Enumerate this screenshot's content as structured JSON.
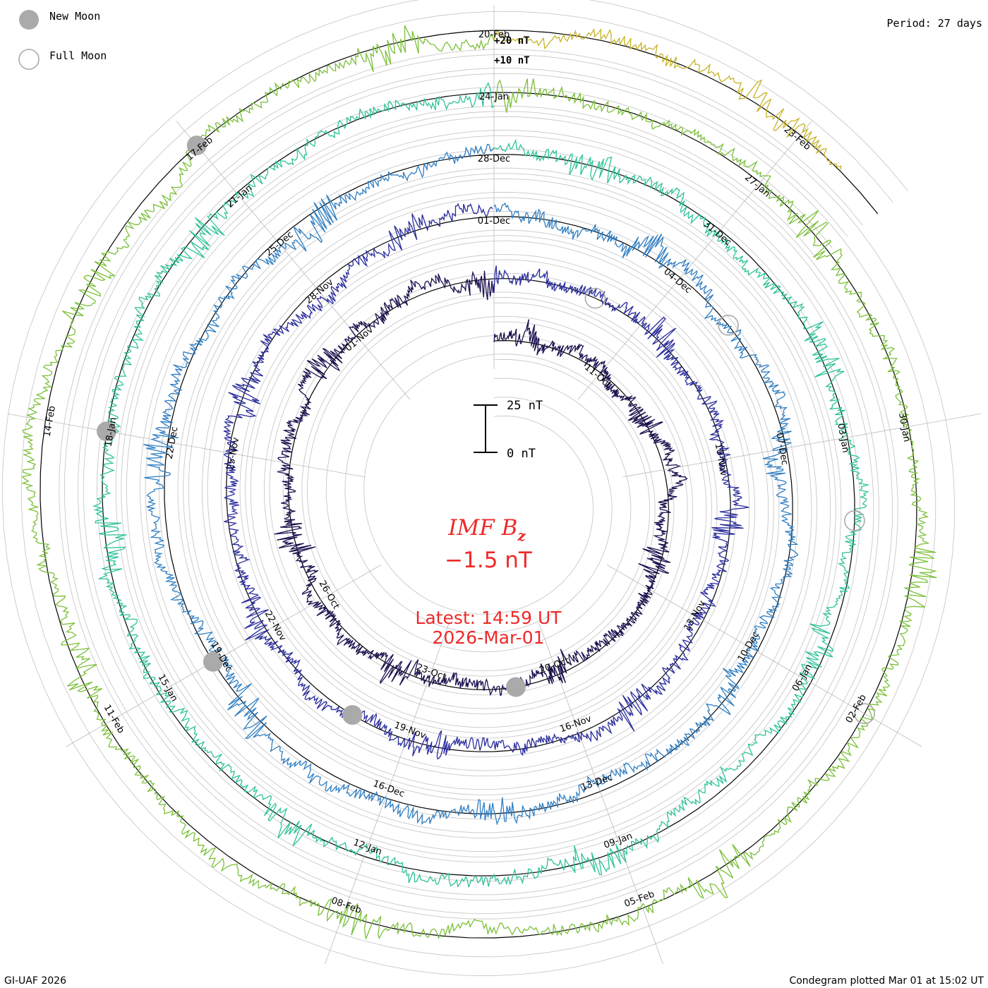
{
  "legend": {
    "new_moon_label": "New Moon",
    "full_moon_label": "Full Moon"
  },
  "period_label": "Period: 27 days",
  "footer": {
    "left": "GI-UAF 2026",
    "right": "Condegram plotted Mar 01 at 15:02 UT"
  },
  "center": {
    "quantity_main": "IMF B",
    "quantity_sub": "z",
    "value": "−1.5 nT",
    "latest_line": "Latest: 14:59 UT",
    "date_line": "2026-Mar-01"
  },
  "scale_bar": {
    "top_label": "25 nT",
    "bottom_label": "0 nT"
  },
  "ring_scale_labels": [
    "+20 nT",
    "+10 nT"
  ],
  "colors": {
    "grid": "#c8c8c8",
    "axis": "#000000",
    "accent": "#ee2a2a",
    "moon_fill": "#aaaaaa"
  },
  "chart_data": {
    "type": "line",
    "subtype": "condegram-spiral",
    "title": "IMF Bz",
    "period_days": 27,
    "turns": 5,
    "start_date": "2025-10-08",
    "end_date": "2026-03-01",
    "units": "nT",
    "scale_nT": 25,
    "ring_levels_nT": [
      -40,
      -30,
      -20,
      -10,
      0,
      10,
      20
    ],
    "latest_value": -1.5,
    "series_colors": [
      "#1b0f4e",
      "#2a2c9c",
      "#2f7ec3",
      "#2fc29a",
      "#7cc03a",
      "#c6b428",
      "#cf7a16",
      "#c0211b"
    ],
    "date_labels": [
      {
        "text": "11-Oct",
        "day": 3
      },
      {
        "text": "20-Oct",
        "day": 12
      },
      {
        "text": "23-Oct",
        "day": 15
      },
      {
        "text": "26-Oct",
        "day": 18
      },
      {
        "text": "01-Nov",
        "day": 24
      },
      {
        "text": "25-Nov",
        "day": 48
      },
      {
        "text": "28-Nov",
        "day": 51
      },
      {
        "text": "01-Dec",
        "day": 54
      },
      {
        "text": "04-Dec",
        "day": 57
      },
      {
        "text": "07-Dec",
        "day": 60
      },
      {
        "text": "10-Nov",
        "day": 33
      },
      {
        "text": "13-Nov",
        "day": 36
      },
      {
        "text": "16-Nov",
        "day": 39
      },
      {
        "text": "19-Nov",
        "day": 42
      },
      {
        "text": "22-Nov",
        "day": 45
      },
      {
        "text": "10-Dec",
        "day": 63
      },
      {
        "text": "13-Dec",
        "day": 66
      },
      {
        "text": "16-Dec",
        "day": 69
      },
      {
        "text": "19-Dec",
        "day": 72
      },
      {
        "text": "22-Dec",
        "day": 75
      },
      {
        "text": "25-Dec",
        "day": 78
      },
      {
        "text": "28-Dec",
        "day": 81
      },
      {
        "text": "31-Dec",
        "day": 84
      },
      {
        "text": "03-Jan",
        "day": 87
      },
      {
        "text": "06-Jan",
        "day": 90
      },
      {
        "text": "09-Jan",
        "day": 93
      },
      {
        "text": "12-Jan",
        "day": 96
      },
      {
        "text": "15-Jan",
        "day": 99
      },
      {
        "text": "18-Jan",
        "day": 102
      },
      {
        "text": "21-Jan",
        "day": 105
      },
      {
        "text": "24-Jan",
        "day": 108
      },
      {
        "text": "27-Jan",
        "day": 111
      },
      {
        "text": "30-Jan",
        "day": 114
      },
      {
        "text": "02-Feb",
        "day": 117
      },
      {
        "text": "05-Feb",
        "day": 120
      },
      {
        "text": "08-Feb",
        "day": 123
      },
      {
        "text": "11-Feb",
        "day": 126
      },
      {
        "text": "14-Feb",
        "day": 129
      },
      {
        "text": "17-Feb",
        "day": 132
      },
      {
        "text": "20-Feb",
        "day": 135
      },
      {
        "text": "23-Feb",
        "day": 138
      }
    ],
    "new_moon_days": [
      13,
      43,
      72,
      102,
      132
    ],
    "full_moon_days": [
      29,
      58,
      88,
      117
    ]
  }
}
